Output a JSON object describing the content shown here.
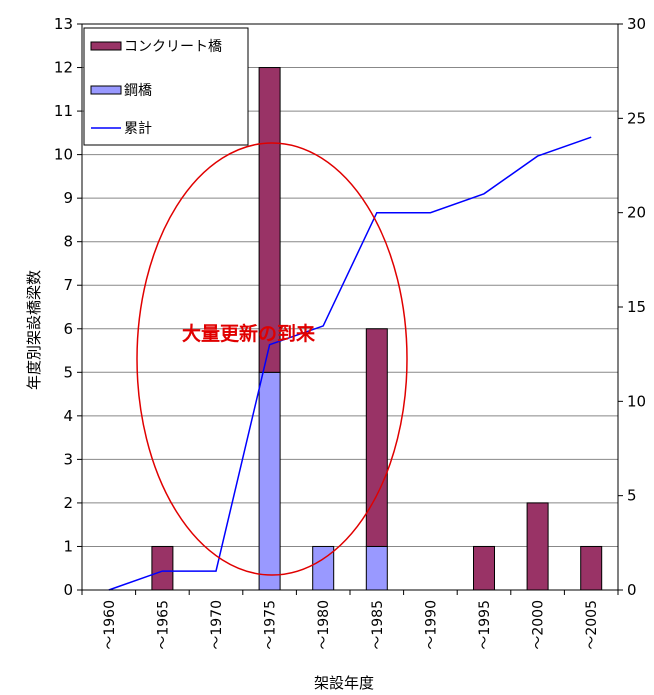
{
  "chart_data": {
    "type": "bar",
    "stacked": true,
    "categories": [
      "～1960",
      "～1965",
      "～1970",
      "～1975",
      "～1980",
      "～1985",
      "～1990",
      "～1995",
      "～2000",
      "～2005"
    ],
    "series": [
      {
        "name": "鋼橋",
        "type": "bar",
        "axis": "left",
        "color": "#9999ff",
        "values": [
          0,
          0,
          0,
          5,
          1,
          1,
          0,
          0,
          0,
          0
        ]
      },
      {
        "name": "コンクリート橋",
        "type": "bar",
        "axis": "left",
        "color": "#993366",
        "values": [
          0,
          1,
          0,
          7,
          0,
          5,
          0,
          1,
          2,
          1
        ]
      },
      {
        "name": "累計",
        "type": "line",
        "axis": "right",
        "color": "#0000ff",
        "values": [
          0,
          1,
          1,
          13,
          14,
          20,
          20,
          21,
          23,
          24
        ]
      }
    ],
    "legend_order": [
      "コンクリート橋",
      "鋼橋",
      "累計"
    ],
    "ylabel": "年度別架設橋梁数",
    "xlabel": "架設年度",
    "ylim": [
      0,
      13
    ],
    "y2lim": [
      0,
      30
    ],
    "yticks": [
      "0",
      "1",
      "2",
      "3",
      "4",
      "5",
      "6",
      "7",
      "8",
      "9",
      "10",
      "11",
      "12",
      "13"
    ],
    "y2ticks": [
      "0",
      "5",
      "10",
      "15",
      "20",
      "25",
      "30"
    ],
    "grid": true,
    "legend_position": "top-left",
    "annotation": {
      "text": "大量更新の到来",
      "color": "#e00000"
    }
  }
}
